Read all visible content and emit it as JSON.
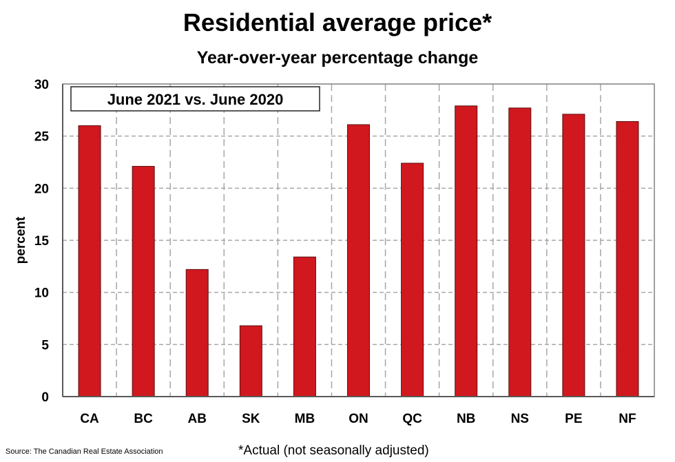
{
  "chart_data": {
    "type": "bar",
    "title": "Residential average price*",
    "subtitle": "Year-over-year percentage change",
    "legend_box": "June 2021 vs. June 2020",
    "xlabel": "",
    "ylabel": "percent",
    "ylim": [
      0,
      30
    ],
    "yticks": [
      0,
      5,
      10,
      15,
      20,
      25,
      30
    ],
    "grid": true,
    "categories": [
      "CA",
      "BC",
      "AB",
      "SK",
      "MB",
      "ON",
      "QC",
      "NB",
      "NS",
      "PE",
      "NF"
    ],
    "values": [
      26.0,
      22.1,
      12.2,
      6.8,
      13.4,
      26.1,
      22.4,
      27.9,
      27.7,
      27.1,
      26.4
    ],
    "bar_color": "#d0181e",
    "footnote": "*Actual (not seasonally adjusted)",
    "source": "Source: The Canadian Real Estate Association"
  }
}
